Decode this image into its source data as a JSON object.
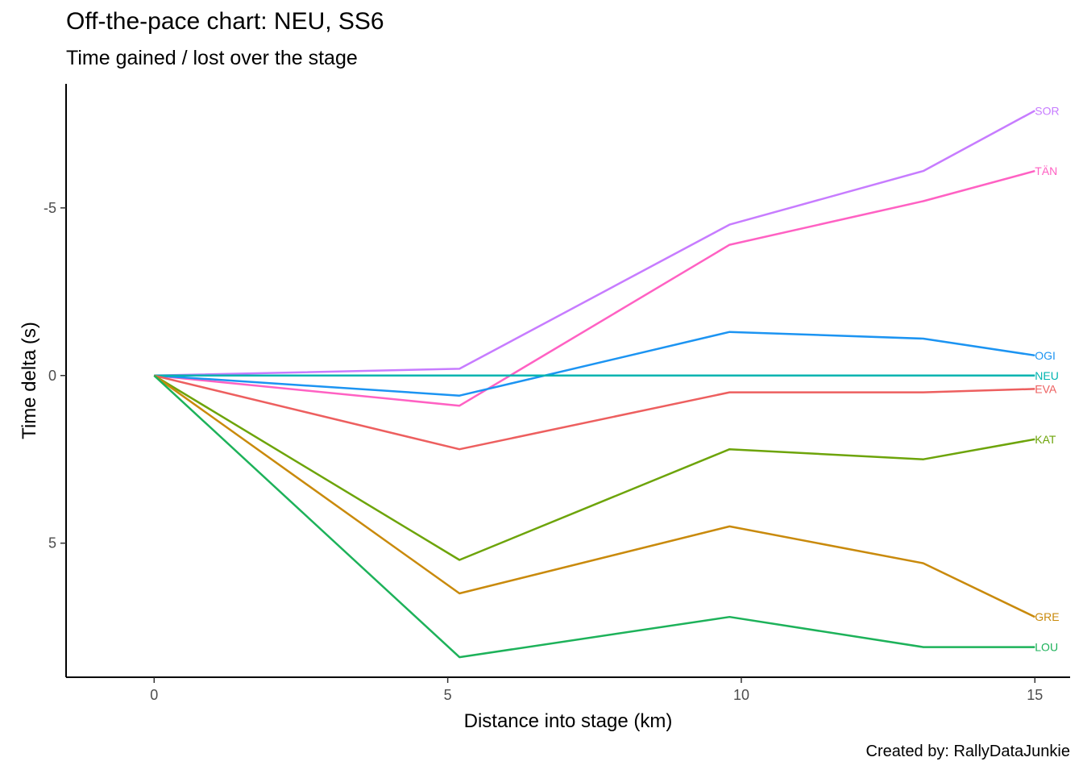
{
  "chart_data": {
    "type": "line",
    "title": "Off-the-pace chart: NEU, SS6",
    "subtitle": "Time gained / lost over the stage",
    "caption": "Created by: RallyDataJunkie",
    "xlabel": "Distance into stage (km)",
    "ylabel": "Time delta (s)",
    "xlim": [
      -1.5,
      15.6
    ],
    "ylim": [
      9.0,
      -8.7
    ],
    "y_reversed": true,
    "x_ticks": [
      0,
      5,
      10,
      15
    ],
    "y_ticks": [
      -5,
      0,
      5
    ],
    "y_tick_labels": [
      "-5",
      "0",
      "5"
    ],
    "grid": false,
    "legend": "none",
    "x": [
      0,
      5.2,
      9.8,
      13.1,
      15
    ],
    "series": [
      {
        "name": "SOR",
        "color": "#C77CFF",
        "values": [
          0,
          -0.2,
          -4.5,
          -6.1,
          -7.9
        ]
      },
      {
        "name": "TÄN",
        "color": "#FF61C3",
        "values": [
          0,
          0.9,
          -3.9,
          -5.2,
          -6.1
        ]
      },
      {
        "name": "OGI",
        "color": "#1C94F2",
        "values": [
          0,
          0.6,
          -1.3,
          -1.1,
          -0.6
        ]
      },
      {
        "name": "NEU",
        "color": "#00B4B0",
        "values": [
          0,
          0,
          0,
          0,
          0
        ]
      },
      {
        "name": "EVA",
        "color": "#ED5F5F",
        "values": [
          0,
          2.2,
          0.5,
          0.5,
          0.4
        ]
      },
      {
        "name": "KAT",
        "color": "#6DA40A",
        "values": [
          0,
          5.5,
          2.2,
          2.5,
          1.9
        ]
      },
      {
        "name": "GRE",
        "color": "#C98A0C",
        "values": [
          0,
          6.5,
          4.5,
          5.6,
          7.2
        ]
      },
      {
        "name": "LOU",
        "color": "#1DB25A",
        "values": [
          0,
          8.4,
          7.2,
          8.1,
          8.1
        ]
      }
    ]
  }
}
